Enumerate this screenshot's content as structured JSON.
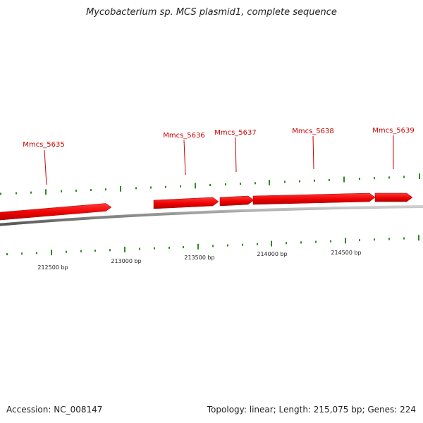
{
  "title": "Mycobacterium sp. MCS plasmid1, complete sequence",
  "footer": {
    "accession": "Accession: NC_008147",
    "summary": "Topology: linear; Length: 215,075 bp; Genes: 224"
  },
  "colors": {
    "gene": "#ff0000",
    "gene_label": "#cc0000",
    "tick": "#2e8b22",
    "backbone": "#8a8a8a",
    "text": "#222222"
  },
  "genes": [
    {
      "id": "Mmcs_5635",
      "label": "Mmcs_5635",
      "strand": "+"
    },
    {
      "id": "Mmcs_5636",
      "label": "Mmcs_5636",
      "strand": "+"
    },
    {
      "id": "Mmcs_5637",
      "label": "Mmcs_5637",
      "strand": "+"
    },
    {
      "id": "Mmcs_5638",
      "label": "Mmcs_5638",
      "strand": "+"
    },
    {
      "id": "Mmcs_5639",
      "label": "Mmcs_5639",
      "strand": "+"
    }
  ],
  "scale_labels": [
    "212500 bp",
    "213000 bp",
    "213500 bp",
    "214000 bp",
    "214500 bp"
  ]
}
